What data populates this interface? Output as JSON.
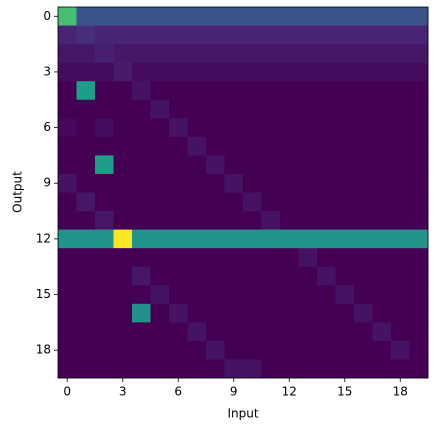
{
  "chart_data": {
    "type": "heatmap",
    "colormap": "viridis",
    "x_label": "Input",
    "y_label": "Output",
    "xlim": [
      -0.5,
      19.5
    ],
    "ylim": [
      19.5,
      -0.5
    ],
    "xticks": [
      0,
      3,
      6,
      9,
      12,
      15,
      18
    ],
    "yticks": [
      0,
      3,
      6,
      9,
      12,
      15,
      18
    ],
    "z": [
      [
        0.7,
        0.25,
        0.25,
        0.25,
        0.25,
        0.25,
        0.25,
        0.25,
        0.25,
        0.25,
        0.25,
        0.25,
        0.25,
        0.25,
        0.25,
        0.25,
        0.25,
        0.25,
        0.25,
        0.25
      ],
      [
        0.1,
        0.13,
        0.1,
        0.1,
        0.1,
        0.1,
        0.1,
        0.1,
        0.1,
        0.1,
        0.1,
        0.1,
        0.1,
        0.1,
        0.1,
        0.1,
        0.1,
        0.1,
        0.1,
        0.1
      ],
      [
        0.06,
        0.06,
        0.09,
        0.06,
        0.06,
        0.06,
        0.06,
        0.06,
        0.06,
        0.06,
        0.06,
        0.06,
        0.06,
        0.06,
        0.06,
        0.06,
        0.06,
        0.06,
        0.06,
        0.06
      ],
      [
        0.03,
        0.03,
        0.03,
        0.07,
        0.03,
        0.03,
        0.03,
        0.03,
        0.03,
        0.03,
        0.03,
        0.03,
        0.03,
        0.03,
        0.03,
        0.03,
        0.03,
        0.03,
        0.03,
        0.03
      ],
      [
        0,
        0.55,
        0,
        0,
        0.05,
        0,
        0,
        0,
        0,
        0,
        0,
        0,
        0,
        0,
        0,
        0,
        0,
        0,
        0,
        0
      ],
      [
        0,
        0,
        0,
        0,
        0,
        0.05,
        0,
        0,
        0,
        0,
        0,
        0,
        0,
        0,
        0,
        0,
        0,
        0,
        0,
        0
      ],
      [
        0.02,
        0,
        0.03,
        0,
        0,
        0,
        0.05,
        0,
        0,
        0,
        0,
        0,
        0,
        0,
        0,
        0,
        0,
        0,
        0,
        0
      ],
      [
        0,
        0,
        0,
        0,
        0,
        0,
        0,
        0.05,
        0,
        0,
        0,
        0,
        0,
        0,
        0,
        0,
        0,
        0,
        0,
        0
      ],
      [
        0,
        0,
        0.55,
        0,
        0,
        0,
        0,
        0,
        0.05,
        0,
        0,
        0,
        0,
        0,
        0,
        0,
        0,
        0,
        0,
        0
      ],
      [
        0.05,
        0,
        0,
        0,
        0,
        0,
        0,
        0,
        0,
        0.05,
        0,
        0,
        0,
        0,
        0,
        0,
        0,
        0,
        0,
        0
      ],
      [
        0,
        0.06,
        0,
        0,
        0,
        0,
        0,
        0,
        0,
        0,
        0.05,
        0,
        0,
        0,
        0,
        0,
        0,
        0,
        0,
        0
      ],
      [
        0,
        0,
        0.06,
        0,
        0,
        0,
        0,
        0,
        0,
        0,
        0,
        0.05,
        0,
        0,
        0,
        0,
        0,
        0,
        0,
        0
      ],
      [
        0.52,
        0.52,
        0.52,
        1.0,
        0.52,
        0.52,
        0.52,
        0.52,
        0.52,
        0.52,
        0.52,
        0.52,
        0.52,
        0.52,
        0.52,
        0.52,
        0.52,
        0.52,
        0.52,
        0.52
      ],
      [
        0,
        0,
        0,
        0,
        0,
        0,
        0,
        0,
        0,
        0,
        0,
        0,
        0,
        0.05,
        0,
        0,
        0,
        0,
        0,
        0
      ],
      [
        0,
        0,
        0,
        0,
        0.06,
        0,
        0,
        0,
        0,
        0,
        0,
        0,
        0,
        0,
        0.05,
        0,
        0,
        0,
        0,
        0
      ],
      [
        0,
        0,
        0,
        0,
        0,
        0.05,
        0,
        0,
        0,
        0,
        0,
        0,
        0,
        0,
        0,
        0.05,
        0,
        0,
        0,
        0
      ],
      [
        0,
        0,
        0,
        0,
        0.5,
        0,
        0.05,
        0,
        0,
        0,
        0,
        0,
        0,
        0,
        0,
        0,
        0.05,
        0,
        0,
        0
      ],
      [
        0,
        0,
        0,
        0,
        0,
        0,
        0,
        0.05,
        0,
        0,
        0,
        0,
        0,
        0,
        0,
        0,
        0,
        0.05,
        0,
        0
      ],
      [
        0,
        0,
        0,
        0,
        0,
        0,
        0,
        0,
        0.05,
        0,
        0,
        0,
        0,
        0,
        0,
        0,
        0,
        0,
        0.05,
        0
      ],
      [
        0,
        0,
        0,
        0,
        0,
        0,
        0,
        0,
        0,
        0.05,
        0.05,
        0,
        0,
        0,
        0,
        0,
        0,
        0,
        0,
        0
      ]
    ]
  }
}
